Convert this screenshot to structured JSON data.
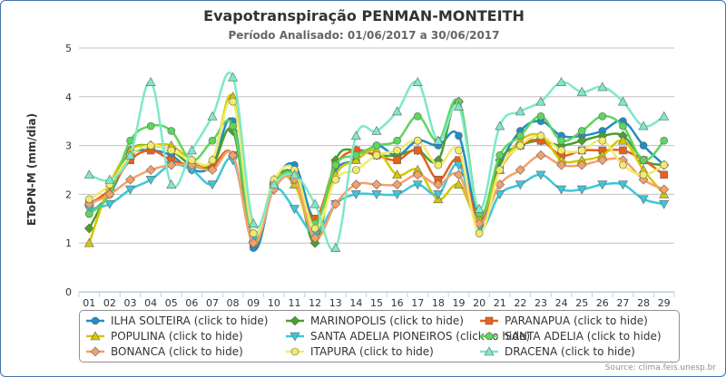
{
  "chart_data": {
    "type": "line",
    "title": "Evapotranspiração PENMAN-MONTEITH",
    "subtitle": "Período Analisado: 01/06/2017 a 30/06/2017",
    "ylabel": "EToPN-M (mm/dia)",
    "xlabel": "",
    "ylim": [
      0,
      5
    ],
    "yticks": [
      0,
      1,
      2,
      3,
      4,
      5
    ],
    "grid": true,
    "legend_position": "bottom",
    "categories": [
      "01",
      "02",
      "03",
      "04",
      "05",
      "06",
      "07",
      "08",
      "09",
      "10",
      "11",
      "12",
      "13",
      "14",
      "15",
      "16",
      "17",
      "18",
      "19",
      "20",
      "21",
      "22",
      "23",
      "24",
      "25",
      "26",
      "27",
      "28",
      "29"
    ],
    "series": [
      {
        "name": "ILHA SOLTEIRA (click to hide)",
        "color": "#1f8ec4",
        "marker": "circle",
        "values": [
          1.6,
          2.0,
          2.8,
          2.9,
          2.8,
          2.5,
          2.6,
          3.5,
          0.9,
          2.2,
          2.6,
          1.5,
          2.5,
          2.7,
          3.0,
          2.8,
          3.1,
          3.0,
          3.2,
          1.5,
          2.6,
          3.3,
          3.5,
          3.2,
          3.2,
          3.3,
          3.5,
          3.0,
          2.6
        ]
      },
      {
        "name": "MARINOPOLIS (click to hide)",
        "color": "#4aa02c",
        "marker": "diamond",
        "values": [
          1.3,
          2.1,
          2.9,
          3.0,
          2.9,
          2.6,
          2.6,
          3.3,
          1.0,
          2.2,
          2.4,
          1.0,
          2.7,
          2.9,
          2.8,
          2.8,
          2.9,
          2.7,
          3.9,
          1.6,
          2.7,
          3.0,
          3.1,
          3.0,
          3.1,
          3.2,
          3.2,
          2.7,
          2.6
        ]
      },
      {
        "name": "PARANAPUA (click to hide)",
        "color": "#e8601c",
        "marker": "square",
        "values": [
          1.8,
          2.1,
          2.7,
          2.9,
          2.7,
          2.6,
          2.6,
          2.8,
          1.0,
          2.2,
          2.3,
          1.5,
          2.6,
          2.9,
          2.8,
          2.7,
          2.9,
          2.3,
          2.7,
          1.5,
          2.5,
          3.0,
          3.1,
          2.8,
          2.9,
          2.9,
          2.9,
          2.7,
          2.4
        ]
      },
      {
        "name": "POPULINA (click to hide)",
        "color": "#d4c700",
        "marker": "triangle",
        "values": [
          1.0,
          2.2,
          2.9,
          3.0,
          3.0,
          2.7,
          2.7,
          4.0,
          1.1,
          2.3,
          2.2,
          1.2,
          2.4,
          2.7,
          2.9,
          2.4,
          2.5,
          1.9,
          2.2,
          1.5,
          2.5,
          3.1,
          3.2,
          2.7,
          2.7,
          2.8,
          3.1,
          2.5,
          2.0
        ]
      },
      {
        "name": "SANTA ADELIA PIONEIROS (click to hide)",
        "color": "#3ec6d8",
        "marker": "triangle-down",
        "values": [
          1.7,
          1.8,
          2.1,
          2.3,
          2.6,
          2.5,
          2.2,
          2.7,
          1.1,
          2.1,
          1.7,
          1.2,
          1.8,
          2.0,
          2.0,
          2.0,
          2.2,
          2.0,
          2.6,
          1.3,
          2.0,
          2.2,
          2.4,
          2.1,
          2.1,
          2.2,
          2.2,
          1.9,
          1.8
        ]
      },
      {
        "name": "SANTA ADELIA (click to hide)",
        "color": "#5dd65d",
        "marker": "circle",
        "values": [
          1.6,
          2.0,
          3.1,
          3.4,
          3.3,
          2.7,
          3.1,
          3.4,
          1.2,
          2.2,
          2.4,
          1.4,
          2.6,
          2.8,
          3.0,
          3.1,
          3.6,
          3.1,
          3.9,
          1.6,
          2.8,
          3.2,
          3.6,
          3.1,
          3.3,
          3.6,
          3.4,
          2.7,
          3.1
        ]
      },
      {
        "name": "BONANCA (click to hide)",
        "color": "#f5a06a",
        "marker": "diamond",
        "values": [
          1.8,
          2.0,
          2.3,
          2.5,
          2.6,
          2.6,
          2.5,
          2.8,
          1.0,
          2.1,
          2.3,
          1.1,
          1.8,
          2.2,
          2.2,
          2.2,
          2.4,
          2.2,
          2.4,
          1.4,
          2.2,
          2.5,
          2.8,
          2.6,
          2.6,
          2.7,
          2.7,
          2.3,
          2.1
        ]
      },
      {
        "name": "ITAPURA (click to hide)",
        "color": "#f2eb6b",
        "marker": "circle",
        "values": [
          1.9,
          2.2,
          2.8,
          3.0,
          2.9,
          2.7,
          2.7,
          3.9,
          1.2,
          2.3,
          2.5,
          1.3,
          2.3,
          2.5,
          2.8,
          2.9,
          3.1,
          2.6,
          2.9,
          1.2,
          2.5,
          3.0,
          3.2,
          2.9,
          2.9,
          3.1,
          2.6,
          2.4,
          2.6
        ]
      },
      {
        "name": "DRACENA (click to hide)",
        "color": "#7ee8c8",
        "marker": "triangle",
        "values": [
          2.4,
          2.3,
          2.8,
          4.3,
          2.2,
          2.9,
          3.6,
          4.4,
          1.4,
          2.2,
          2.4,
          1.8,
          0.9,
          3.2,
          3.3,
          3.7,
          4.3,
          3.1,
          3.8,
          1.7,
          3.4,
          3.7,
          3.9,
          4.3,
          4.1,
          4.2,
          3.9,
          3.4,
          3.6
        ]
      }
    ]
  },
  "credits": "Source: clima.feis.unesp.br"
}
